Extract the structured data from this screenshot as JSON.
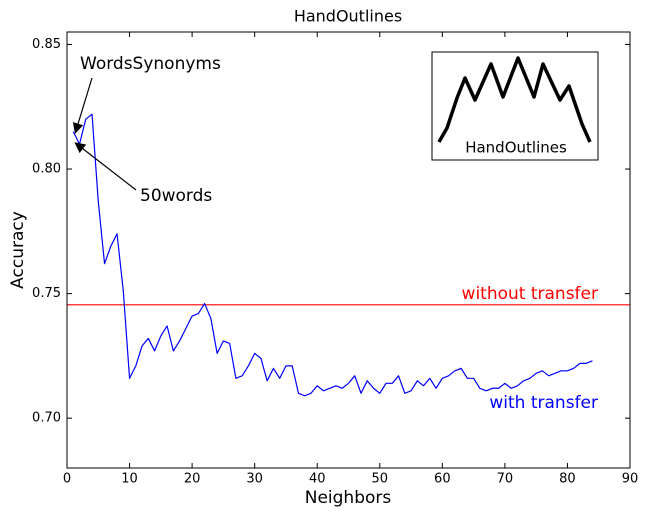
{
  "chart_data": {
    "type": "line",
    "title": "HandOutlines",
    "x_label": "Neighbors",
    "y_label": "Accuracy",
    "x": [
      1,
      2,
      3,
      4,
      5,
      6,
      7,
      8,
      9,
      10,
      11,
      12,
      13,
      14,
      15,
      16,
      17,
      18,
      19,
      20,
      21,
      22,
      23,
      24,
      25,
      26,
      27,
      28,
      29,
      30,
      31,
      32,
      33,
      34,
      35,
      36,
      37,
      38,
      39,
      40,
      41,
      42,
      43,
      44,
      45,
      46,
      47,
      48,
      49,
      50,
      51,
      52,
      53,
      54,
      55,
      56,
      57,
      58,
      59,
      60,
      61,
      62,
      63,
      64,
      65,
      66,
      67,
      68,
      69,
      70,
      71,
      72,
      73,
      74,
      75,
      76,
      77,
      78,
      79,
      80,
      81,
      82,
      83,
      84
    ],
    "series": [
      {
        "name": "with transfer",
        "color": "#0000ff",
        "values": [
          0.815,
          0.81,
          0.82,
          0.822,
          0.787,
          0.762,
          0.769,
          0.774,
          0.751,
          0.716,
          0.721,
          0.729,
          0.732,
          0.727,
          0.733,
          0.737,
          0.727,
          0.731,
          0.736,
          0.741,
          0.742,
          0.746,
          0.74,
          0.726,
          0.731,
          0.73,
          0.716,
          0.717,
          0.721,
          0.726,
          0.724,
          0.715,
          0.72,
          0.716,
          0.721,
          0.721,
          0.71,
          0.709,
          0.71,
          0.713,
          0.711,
          0.712,
          0.713,
          0.712,
          0.714,
          0.717,
          0.71,
          0.715,
          0.712,
          0.71,
          0.714,
          0.714,
          0.717,
          0.71,
          0.711,
          0.715,
          0.713,
          0.716,
          0.712,
          0.716,
          0.717,
          0.719,
          0.72,
          0.716,
          0.716,
          0.712,
          0.711,
          0.712,
          0.712,
          0.714,
          0.712,
          0.713,
          0.715,
          0.716,
          0.718,
          0.719,
          0.717,
          0.718,
          0.719,
          0.719,
          0.72,
          0.722,
          0.722,
          0.723
        ]
      }
    ],
    "baseline": {
      "value": 0.7455,
      "label": "without transfer",
      "color": "#ff0000"
    },
    "annotations": [
      {
        "text": "WordsSynonyms",
        "x": 1,
        "y": 0.8145
      },
      {
        "text": "50words",
        "x": 1,
        "y": 0.8105
      }
    ],
    "inset_label": "HandOutlines",
    "xlim": [
      0,
      90
    ],
    "ylim": [
      0.68,
      0.855
    ],
    "xticks": [
      0,
      10,
      20,
      30,
      40,
      50,
      60,
      70,
      80,
      90
    ],
    "yticks": [
      {
        "value": 0.7,
        "label": "0.70"
      },
      0.75,
      {
        "value": 0.8,
        "label": "0.80"
      },
      0.85
    ]
  }
}
